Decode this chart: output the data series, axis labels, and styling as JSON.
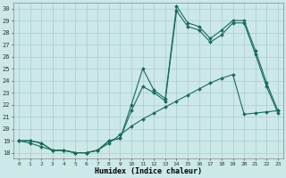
{
  "xlabel": "Humidex (Indice chaleur)",
  "background_color": "#cce8e8",
  "grid_color": "#aacccc",
  "line_color": "#1a6b5a",
  "xlim": [
    -0.5,
    23.5
  ],
  "ylim": [
    17.5,
    30.5
  ],
  "yticks": [
    18,
    19,
    20,
    21,
    22,
    23,
    24,
    25,
    26,
    27,
    28,
    29,
    30
  ],
  "xticks": [
    0,
    1,
    2,
    3,
    4,
    5,
    6,
    7,
    8,
    9,
    10,
    11,
    12,
    13,
    14,
    15,
    16,
    17,
    18,
    19,
    20,
    21,
    22,
    23
  ],
  "line1": [
    19.0,
    19.0,
    18.8,
    18.2,
    18.2,
    18.0,
    18.0,
    18.2,
    19.0,
    19.2,
    22.0,
    25.0,
    23.2,
    22.5,
    30.2,
    28.8,
    28.5,
    27.5,
    28.2,
    29.0,
    29.0,
    26.5,
    23.8,
    21.5
  ],
  "line2": [
    19.0,
    19.0,
    18.8,
    18.2,
    18.2,
    18.0,
    18.0,
    18.2,
    19.0,
    19.2,
    21.5,
    23.5,
    23.0,
    22.3,
    29.8,
    28.5,
    28.2,
    27.2,
    27.8,
    28.8,
    28.8,
    26.2,
    23.5,
    21.3
  ],
  "line3": [
    19.0,
    18.8,
    18.5,
    18.2,
    18.2,
    18.0,
    18.0,
    18.2,
    18.8,
    19.5,
    20.2,
    20.8,
    21.3,
    21.8,
    22.3,
    22.8,
    23.3,
    23.8,
    24.2,
    24.5,
    21.2,
    21.3,
    21.4,
    21.5
  ]
}
